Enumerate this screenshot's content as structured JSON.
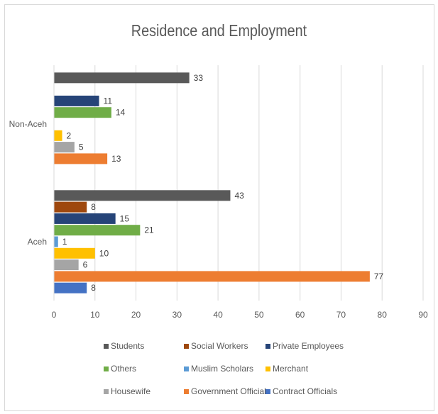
{
  "chart_data": {
    "type": "bar",
    "orientation": "horizontal",
    "title": "Residence and Employment",
    "categories": [
      "Non-Aceh",
      "Aceh"
    ],
    "xlim": [
      0,
      90
    ],
    "xticks": [
      0,
      10,
      20,
      30,
      40,
      50,
      60,
      70,
      80,
      90
    ],
    "grid": "vertical",
    "legend_position": "bottom",
    "series": [
      {
        "name": "Students",
        "color": "#595959",
        "values": [
          33,
          43
        ]
      },
      {
        "name": "Social Workers",
        "color": "#9e480e",
        "values": [
          null,
          8
        ]
      },
      {
        "name": "Private Employees",
        "color": "#264478",
        "values": [
          11,
          15
        ]
      },
      {
        "name": "Others",
        "color": "#70ad47",
        "values": [
          14,
          21
        ]
      },
      {
        "name": "Muslim Scholars",
        "color": "#5b9bd5",
        "values": [
          null,
          1
        ]
      },
      {
        "name": "Merchant",
        "color": "#ffc000",
        "values": [
          2,
          10
        ]
      },
      {
        "name": "Housewife",
        "color": "#a5a5a5",
        "values": [
          5,
          6
        ]
      },
      {
        "name": "Government Officials",
        "color": "#ed7d31",
        "values": [
          13,
          77
        ]
      },
      {
        "name": "Contract Officials",
        "color": "#4472c4",
        "values": [
          null,
          8
        ]
      }
    ]
  }
}
